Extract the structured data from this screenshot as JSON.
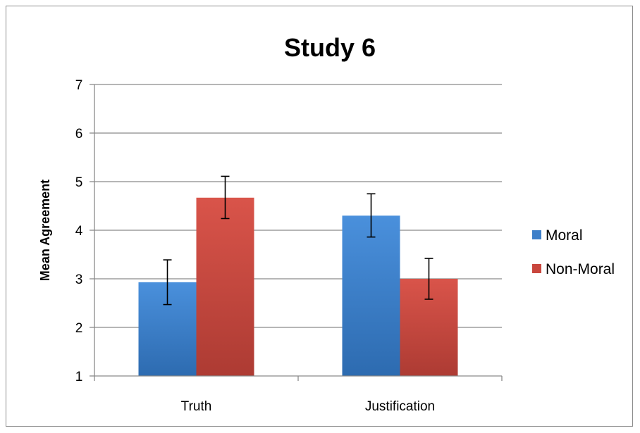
{
  "chart_data": {
    "type": "bar",
    "title": "Study 6",
    "xlabel": "",
    "ylabel": "Mean Agreement",
    "ylim": [
      1,
      7
    ],
    "yticks": [
      1,
      2,
      3,
      4,
      5,
      6,
      7
    ],
    "grid": true,
    "legend_position": "right",
    "categories": [
      "Truth",
      "Justification"
    ],
    "series": [
      {
        "name": "Moral",
        "color": "#3d7fc9",
        "values": [
          2.93,
          4.3
        ],
        "error_low": [
          2.47,
          3.86
        ],
        "error_high": [
          3.39,
          4.75
        ]
      },
      {
        "name": "Non-Moral",
        "color": "#c9463d",
        "values": [
          4.67,
          3.0
        ],
        "error_low": [
          4.24,
          2.58
        ],
        "error_high": [
          5.11,
          3.42
        ]
      }
    ]
  }
}
